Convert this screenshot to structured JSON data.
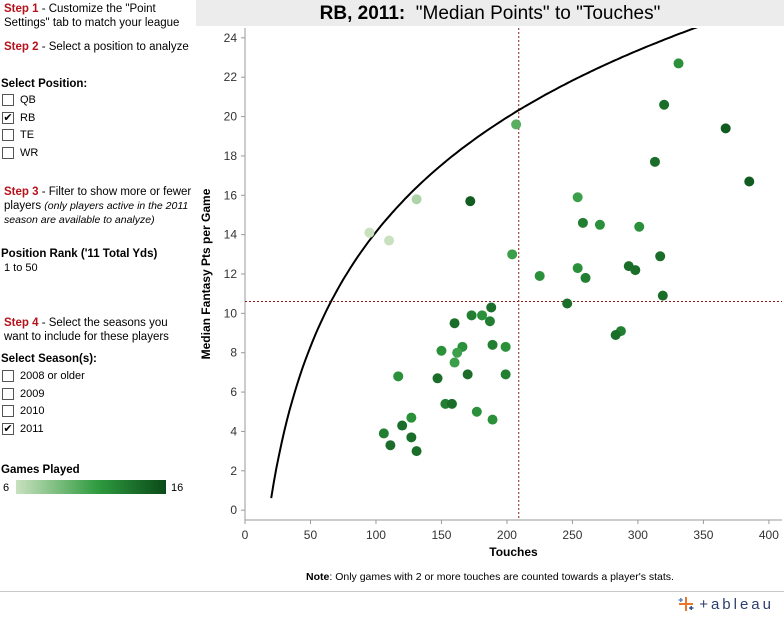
{
  "sidebar": {
    "step1": {
      "label": "Step 1",
      "text": " - Customize the \"Point Settings\" tab to match your league"
    },
    "step2": {
      "label": "Step 2",
      "text": " - Select a position to analyze"
    },
    "position_header": "Select Position:",
    "positions": [
      {
        "label": "QB",
        "checked": false
      },
      {
        "label": "RB",
        "checked": true
      },
      {
        "label": "TE",
        "checked": false
      },
      {
        "label": "WR",
        "checked": false
      }
    ],
    "step3": {
      "label": "Step 3",
      "text": " - Filter to show more or fewer players ",
      "note": "(only players active in the 2011 season are available to analyze)"
    },
    "rank_header": "Position Rank ('11 Total Yds)",
    "rank_value": "1 to 50",
    "step4": {
      "label": "Step 4",
      "text": " - Select the seasons you want to include for these players"
    },
    "season_header": "Select Season(s):",
    "seasons": [
      {
        "label": "2008 or older",
        "checked": false
      },
      {
        "label": "2009",
        "checked": false
      },
      {
        "label": "2010",
        "checked": false
      },
      {
        "label": "2011",
        "checked": true
      }
    ],
    "legend": {
      "title": "Games Played",
      "min": "6",
      "max": "16"
    },
    "check_glyph": "✔"
  },
  "title": {
    "bold": "RB, 2011:",
    "rest": "  \"Median Points\" to \"Touches\""
  },
  "note": {
    "bold": "Note",
    "text": ":  Only games with 2 or more touches are counted towards a player's stats."
  },
  "logo": {
    "text": "+ableau",
    "icon": "tableau-cross-icon"
  },
  "colors": {
    "accent": "#b5121b",
    "ref_line": "#8b1a1a",
    "trend": "#000000",
    "legend_low": "#c9e1bf",
    "legend_high": "#0b4a19"
  },
  "chart_data": {
    "type": "scatter",
    "xlabel": "Touches",
    "ylabel": "Median Fantasy Pts per Game",
    "xlim": [
      0,
      410
    ],
    "ylim": [
      -0.5,
      24.5
    ],
    "x_ticks": [
      0,
      50,
      100,
      150,
      200,
      250,
      300,
      350,
      400
    ],
    "y_ticks": [
      0,
      2,
      4,
      6,
      8,
      10,
      12,
      14,
      16,
      18,
      20,
      22,
      24
    ],
    "reference_lines": {
      "x": 209,
      "y": 10.6
    },
    "trend": {
      "type": "logarithmic",
      "a": -24.55,
      "b": 8.4
    },
    "color_by": "Games Played",
    "points": [
      {
        "x": 95,
        "y": 14.1,
        "games": 6
      },
      {
        "x": 110,
        "y": 13.7,
        "games": 6
      },
      {
        "x": 131,
        "y": 15.8,
        "games": 7
      },
      {
        "x": 172,
        "y": 15.7,
        "games": 15
      },
      {
        "x": 207,
        "y": 19.6,
        "games": 10
      },
      {
        "x": 331,
        "y": 22.7,
        "games": 12
      },
      {
        "x": 320,
        "y": 20.6,
        "games": 14
      },
      {
        "x": 367,
        "y": 19.4,
        "games": 15
      },
      {
        "x": 313,
        "y": 17.7,
        "games": 14
      },
      {
        "x": 385,
        "y": 16.7,
        "games": 15
      },
      {
        "x": 254,
        "y": 15.9,
        "games": 11
      },
      {
        "x": 258,
        "y": 14.6,
        "games": 13
      },
      {
        "x": 271,
        "y": 14.5,
        "games": 12
      },
      {
        "x": 301,
        "y": 14.4,
        "games": 12
      },
      {
        "x": 204,
        "y": 13.0,
        "games": 11
      },
      {
        "x": 317,
        "y": 12.9,
        "games": 14
      },
      {
        "x": 254,
        "y": 12.3,
        "games": 12
      },
      {
        "x": 293,
        "y": 12.4,
        "games": 14
      },
      {
        "x": 298,
        "y": 12.2,
        "games": 14
      },
      {
        "x": 260,
        "y": 11.8,
        "games": 13
      },
      {
        "x": 225,
        "y": 11.9,
        "games": 12
      },
      {
        "x": 319,
        "y": 10.9,
        "games": 14
      },
      {
        "x": 246,
        "y": 10.5,
        "games": 14
      },
      {
        "x": 188,
        "y": 10.3,
        "games": 14
      },
      {
        "x": 173,
        "y": 9.9,
        "games": 13
      },
      {
        "x": 181,
        "y": 9.9,
        "games": 12
      },
      {
        "x": 160,
        "y": 9.5,
        "games": 14
      },
      {
        "x": 187,
        "y": 9.6,
        "games": 13
      },
      {
        "x": 287,
        "y": 9.1,
        "games": 13
      },
      {
        "x": 283,
        "y": 8.9,
        "games": 14
      },
      {
        "x": 189,
        "y": 8.4,
        "games": 13
      },
      {
        "x": 199,
        "y": 8.3,
        "games": 12
      },
      {
        "x": 166,
        "y": 8.3,
        "games": 12
      },
      {
        "x": 150,
        "y": 8.1,
        "games": 12
      },
      {
        "x": 162,
        "y": 8.0,
        "games": 11
      },
      {
        "x": 160,
        "y": 7.5,
        "games": 11
      },
      {
        "x": 170,
        "y": 6.9,
        "games": 14
      },
      {
        "x": 199,
        "y": 6.9,
        "games": 13
      },
      {
        "x": 117,
        "y": 6.8,
        "games": 12
      },
      {
        "x": 147,
        "y": 6.7,
        "games": 14
      },
      {
        "x": 153,
        "y": 5.4,
        "games": 13
      },
      {
        "x": 158,
        "y": 5.4,
        "games": 14
      },
      {
        "x": 177,
        "y": 5.0,
        "games": 12
      },
      {
        "x": 127,
        "y": 4.7,
        "games": 12
      },
      {
        "x": 189,
        "y": 4.6,
        "games": 12
      },
      {
        "x": 120,
        "y": 4.3,
        "games": 14
      },
      {
        "x": 106,
        "y": 3.9,
        "games": 13
      },
      {
        "x": 127,
        "y": 3.7,
        "games": 14
      },
      {
        "x": 111,
        "y": 3.3,
        "games": 14
      },
      {
        "x": 131,
        "y": 3.0,
        "games": 14
      }
    ]
  }
}
